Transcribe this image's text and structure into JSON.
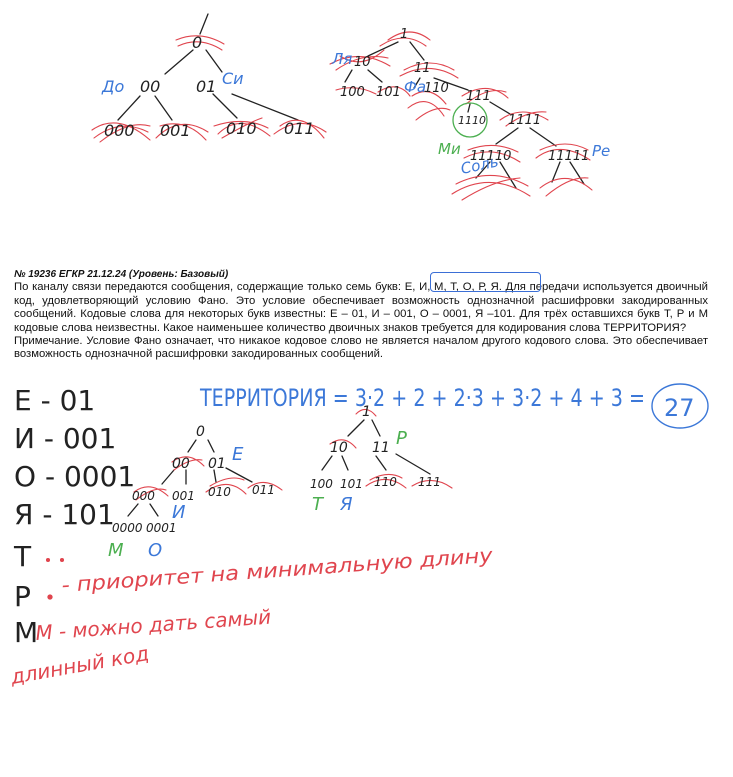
{
  "colors": {
    "ink": "#222222",
    "red": "#e0454e",
    "blue": "#3c78d8",
    "green": "#4caf50"
  },
  "task": {
    "header": "№ 19236 ЕГКР 21.12.24 (Уровень: Базовый)",
    "paragraph1": "По каналу связи передаются сообщения, содержащие только семь букв: Е, И, М, Т, О, Р, Я. Для передачи используется двоичный код, удовлетворяющий условию Фано. Это условие обеспечивает возможность однозначной расшифровки закодированных сообщений. Кодовые слова для некоторых букв известны: Е – 01, И – 001, О – 0001, Я –101. Для трёх оставшихся букв Т, Р и М кодовые слова неизвестны. Какое наименьшее количество двоичных знаков требуется для кодирования слова ТЕРРИТОРИЯ?",
    "paragraph2": "Примечание. Условие Фано означает, что никакое кодовое слово не является началом другого кодового слова. Это обеспечивает возможность однозначной расшифровки закодированных сообщений."
  },
  "top_left_tree": {
    "root": "0",
    "label_do": "До",
    "node_00": "00",
    "node_01": "01",
    "label_si": "Си",
    "leaf_000": "000",
    "leaf_001": "001",
    "leaf_010": "010",
    "leaf_011": "011"
  },
  "top_right_tree": {
    "root": "1",
    "label_lya": "Ля",
    "node_10": "10",
    "node_11": "11",
    "leaf_100": "100",
    "leaf_101": "101",
    "label_fa": "Фа",
    "node_110": "110",
    "node_111": "111",
    "node_1110": "1110",
    "node_1111": "1111",
    "label_mi": "Ми",
    "node_11110": "11110",
    "node_11111": "11111",
    "label_re": "Ре",
    "label_sol": "Соль"
  },
  "solution": {
    "code_e": "Е - 01",
    "code_i": "И - 001",
    "code_o": "О - 0001",
    "code_ya": "Я - 101",
    "letter_t": "Т",
    "letter_r": "Р",
    "letter_m": "М",
    "formula": "ТЕРРИТОРИЯ = 3·2 + 2 + 2·3 + 3·2 + 4 + 3 =",
    "answer": "27",
    "note_r": "- приоритет на минимальную длину",
    "note_m1": "М - можно дать самый",
    "note_m2": "длинный код"
  },
  "bottom_tree_left": {
    "root": "0",
    "node_00": "00",
    "node_01": "01",
    "label_e": "Е",
    "leaf_000": "000",
    "leaf_001": "001",
    "leaf_010": "010",
    "leaf_011": "011",
    "leaf_0000": "0000",
    "leaf_0001": "0001",
    "label_i": "И",
    "label_m": "М",
    "label_o": "О"
  },
  "bottom_tree_right": {
    "root": "1",
    "node_10": "10",
    "node_11": "11",
    "label_r": "Р",
    "leaf_100": "100",
    "leaf_101": "101",
    "leaf_110": "110",
    "leaf_111": "111",
    "label_t": "Т",
    "label_ya": "Я"
  }
}
